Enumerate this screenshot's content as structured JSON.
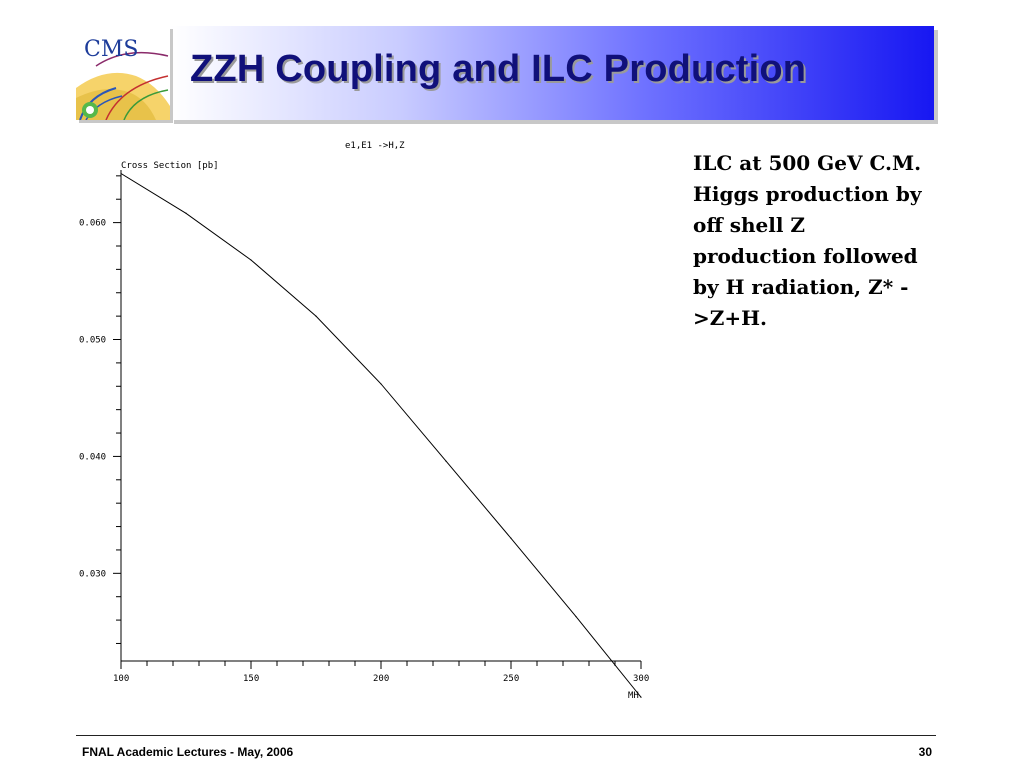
{
  "slide": {
    "title": "ZZH Coupling and ILC Production",
    "logo_text": "CMS",
    "side_text": "ILC at 500 GeV C.M. Higgs production by off shell Z production followed by H radiation, Z* ->Z+H.",
    "footer_left": "FNAL Academic Lectures - May, 2006",
    "page_number": "30"
  },
  "colors": {
    "title_text": "#10107a",
    "header_gradient_end": "#1717f2"
  },
  "chart_data": {
    "type": "line",
    "title": "e1,E1 ->H,Z",
    "ylabel": "Cross Section [pb]",
    "xlabel": "MH",
    "xlim": [
      100,
      300
    ],
    "ylim": [
      0.0225,
      0.0645
    ],
    "x_ticks": [
      "100",
      "150",
      "200",
      "250",
      "300"
    ],
    "y_ticks": [
      "0.060",
      "0.050",
      "0.040",
      "0.030"
    ],
    "series": [
      {
        "x": [
          100,
          125,
          150,
          175,
          200,
          225,
          250,
          275,
          300
        ],
        "y": [
          0.0642,
          0.0608,
          0.0568,
          0.052,
          0.0462,
          0.0396,
          0.033,
          0.0263,
          0.0194
        ]
      }
    ]
  }
}
